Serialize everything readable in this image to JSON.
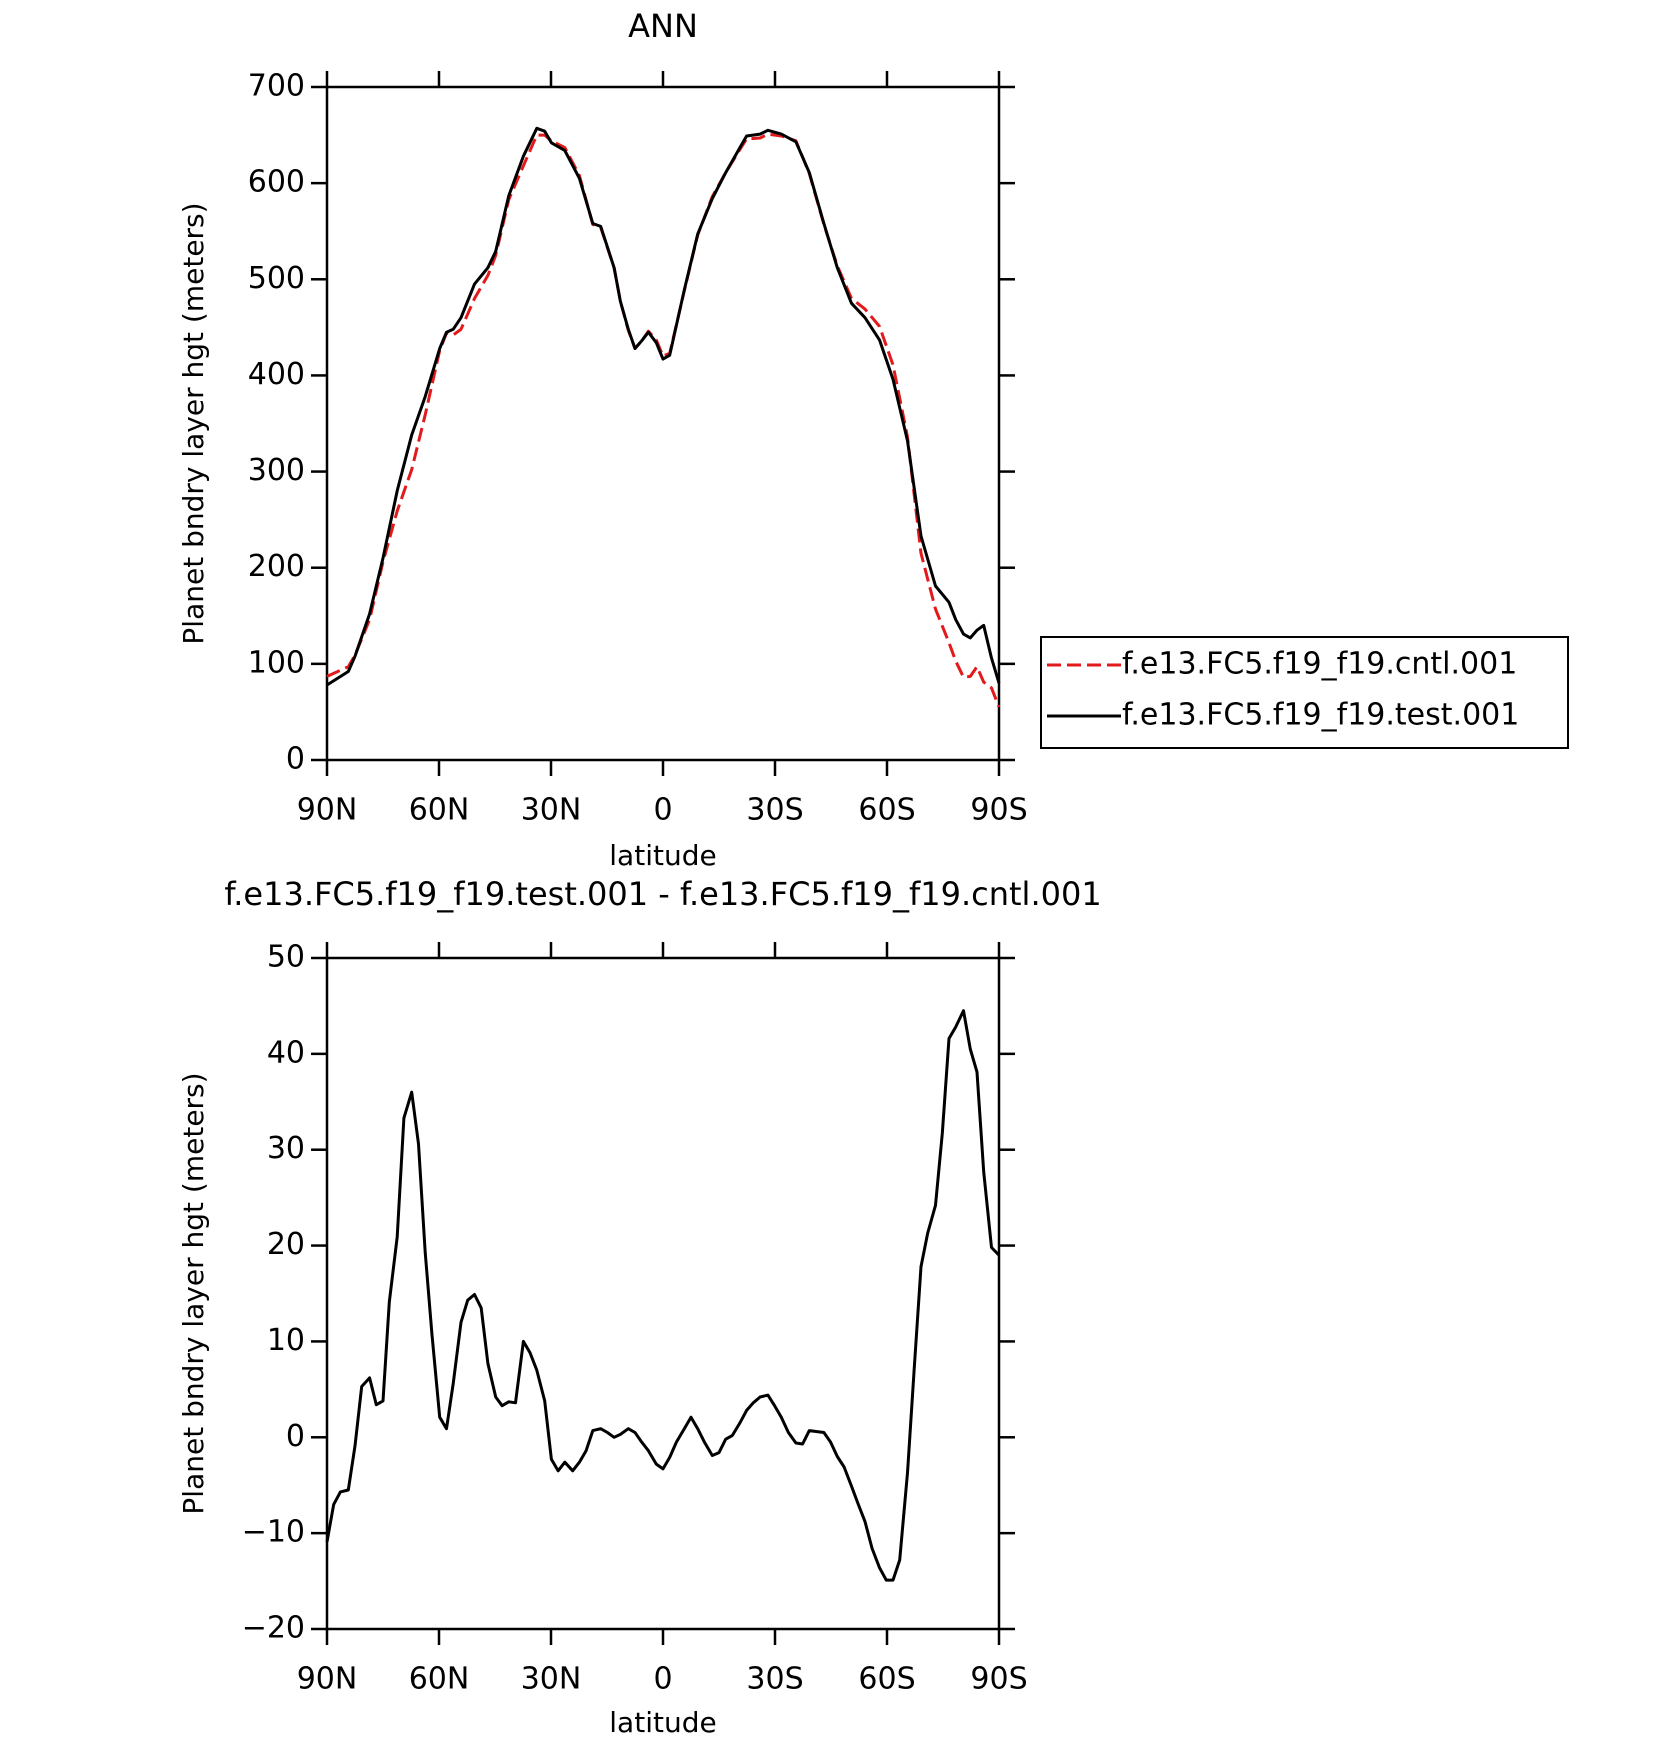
{
  "chart_data": [
    {
      "type": "line",
      "title": "ANN",
      "xlabel": "latitude",
      "ylabel": "Planet bndry layer hgt (meters)",
      "x": [
        90,
        84.3,
        82.5,
        78.6,
        75,
        71.2,
        67.3,
        63.7,
        59.8,
        58,
        56.2,
        54.1,
        50.5,
        46.9,
        44.8,
        41.3,
        37.4,
        33.8,
        31.7,
        29.9,
        26.3,
        22.4,
        18.8,
        16.7,
        13.1,
        11.4,
        9.3,
        7.5,
        5.7,
        3.9,
        1.8,
        0,
        -1.8,
        -5.7,
        -9.3,
        -13.2,
        -16.8,
        -20.6,
        -22.4,
        -26,
        -28.1,
        -31.7,
        -35.6,
        -39.2,
        -43.1,
        -46.7,
        -50.5,
        -54.1,
        -58,
        -61.6,
        -65.5,
        -69.1,
        -73,
        -76.6,
        -78.4,
        -80.5,
        -82.3,
        -84.1,
        -85.9,
        -88,
        -90
      ],
      "series": [
        {
          "name": "f.e13.FC5.f19_f19.cntl.001",
          "color": "#e31a1c",
          "line_style": "dashed",
          "values": [
            87,
            97,
            109,
            146,
            206,
            259,
            302,
            359,
            426,
            444,
            442,
            448,
            480,
            504,
            525,
            583,
            618,
            650,
            650,
            644,
            637,
            608,
            557,
            554,
            512,
            477,
            447,
            428,
            436,
            446,
            437,
            420,
            423,
            488,
            546,
            586,
            611,
            635,
            646,
            647,
            651,
            649,
            644,
            610,
            557,
            514,
            480,
            469,
            451,
            411,
            336,
            215,
            157,
            122,
            103,
            86,
            87,
            97,
            81,
            75,
            55
          ]
        },
        {
          "name": "f.e13.FC5.f19_f19.test.001",
          "color": "#000000",
          "line_style": "solid",
          "values": [
            78,
            92,
            108,
            152,
            210,
            280,
            338,
            378,
            428,
            445,
            448,
            460,
            495,
            512,
            529,
            587,
            628,
            657,
            654,
            642,
            634,
            605,
            558,
            555,
            512,
            477,
            448,
            428,
            436,
            445,
            434,
            417,
            421,
            489,
            547,
            584,
            611,
            637,
            649,
            651,
            655,
            651,
            643,
            611,
            558,
            512,
            475,
            460,
            437,
            396,
            332,
            233,
            181,
            164,
            146,
            131,
            127,
            135,
            140,
            106,
            80
          ]
        }
      ],
      "xlim": [
        90,
        -90
      ],
      "xticks": [
        {
          "value": 90,
          "label": "90N"
        },
        {
          "value": 60,
          "label": "60N"
        },
        {
          "value": 30,
          "label": "30N"
        },
        0,
        {
          "value": -30,
          "label": "30S"
        },
        {
          "value": -60,
          "label": "60S"
        },
        {
          "value": -90,
          "label": "90S"
        }
      ],
      "ylim": [
        0,
        700
      ],
      "yticks": [
        0,
        100,
        200,
        300,
        400,
        500,
        600,
        700
      ],
      "legend": "right"
    },
    {
      "type": "line",
      "title": "f.e13.FC5.f19_f19.test.001 - f.e13.FC5.f19_f19.cntl.001",
      "xlabel": "latitude",
      "ylabel": "Planet bndry layer hgt (meters)",
      "color": "#000000",
      "x": [
        90,
        88.2,
        86.4,
        84.3,
        82.5,
        80.7,
        78.6,
        76.8,
        75,
        73.3,
        71.2,
        69.4,
        67.3,
        65.5,
        63.7,
        61.9,
        59.8,
        58,
        56.2,
        54.1,
        52.3,
        50.5,
        48.7,
        46.9,
        44.8,
        43.1,
        41.3,
        39.5,
        37.4,
        35.6,
        33.8,
        31.7,
        29.9,
        28.1,
        26.3,
        24.2,
        22.4,
        20.6,
        18.8,
        16.7,
        14.9,
        13.1,
        11.4,
        9.3,
        7.5,
        5.7,
        3.9,
        1.8,
        0,
        -1.8,
        -3.6,
        -5.7,
        -7.5,
        -9.3,
        -11.1,
        -13.2,
        -15,
        -16.8,
        -18.6,
        -20.6,
        -22.4,
        -24.2,
        -26,
        -28.1,
        -29.9,
        -31.7,
        -33.6,
        -35.6,
        -37.4,
        -39.2,
        -41,
        -43.1,
        -44.9,
        -46.7,
        -48.5,
        -50.5,
        -52.3,
        -54.1,
        -56,
        -58,
        -59.8,
        -61.6,
        -63.4,
        -65.5,
        -67.3,
        -69.1,
        -70.9,
        -73,
        -74.8,
        -76.6,
        -78.4,
        -80.5,
        -82.3,
        -84.1,
        -85.9,
        -88,
        -90
      ],
      "values": [
        -10.9,
        -7.0,
        -5.7,
        -5.5,
        -0.9,
        5.3,
        6.2,
        3.4,
        3.8,
        14.1,
        20.9,
        33.3,
        36.0,
        30.6,
        19.3,
        10.8,
        2.1,
        0.9,
        5.6,
        12.0,
        14.3,
        14.9,
        13.5,
        7.7,
        4.2,
        3.3,
        3.7,
        3.6,
        10.0,
        8.8,
        7.0,
        3.8,
        -2.3,
        -3.5,
        -2.6,
        -3.5,
        -2.6,
        -1.4,
        0.7,
        0.9,
        0.5,
        0.0,
        0.3,
        0.9,
        0.5,
        -0.5,
        -1.4,
        -2.8,
        -3.3,
        -2.1,
        -0.5,
        0.9,
        2.1,
        0.9,
        -0.5,
        -1.9,
        -1.6,
        -0.2,
        0.2,
        1.5,
        2.8,
        3.6,
        4.2,
        4.4,
        3.3,
        2.1,
        0.5,
        -0.6,
        -0.7,
        0.7,
        0.6,
        0.5,
        -0.5,
        -2.0,
        -3.1,
        -5.1,
        -7.0,
        -8.8,
        -11.6,
        -13.6,
        -14.9,
        -14.9,
        -12.8,
        -3.7,
        7.3,
        17.8,
        21.3,
        24.2,
        31.7,
        41.6,
        42.8,
        44.5,
        40.5,
        38.1,
        27.7,
        19.8,
        19
      ],
      "xlim": [
        90,
        -90
      ],
      "xticks": [
        {
          "value": 90,
          "label": "90N"
        },
        {
          "value": 60,
          "label": "60N"
        },
        {
          "value": 30,
          "label": "30N"
        },
        0,
        {
          "value": -30,
          "label": "30S"
        },
        {
          "value": -60,
          "label": "60S"
        },
        {
          "value": -90,
          "label": "90S"
        }
      ],
      "ylim": [
        -20,
        50
      ],
      "yticks": [
        {
          "value": -20,
          "label": "−20"
        },
        {
          "value": -10,
          "label": "−10"
        },
        0,
        10,
        20,
        30,
        40,
        50
      ]
    }
  ]
}
